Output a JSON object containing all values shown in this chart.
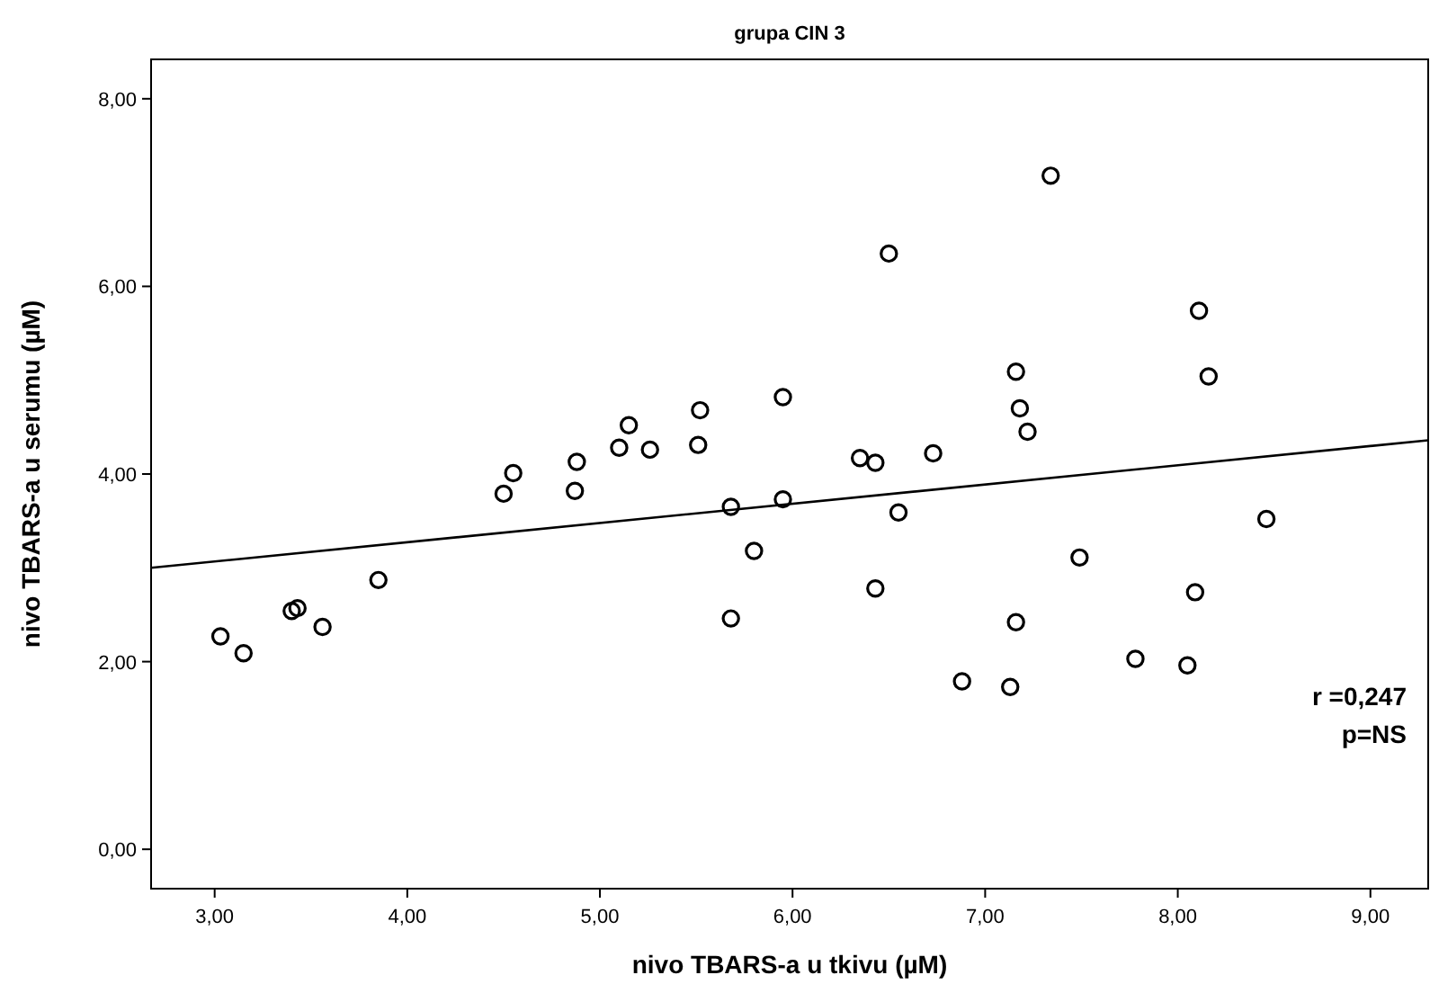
{
  "chart_data": {
    "type": "scatter",
    "title": "grupa CIN 3",
    "xlabel": "nivo TBARS-a u tkivu (µM)",
    "ylabel": "nivo TBARS-a u serumu (µM)",
    "xlim": [
      2.67,
      9.3
    ],
    "ylim": [
      -0.42,
      8.42
    ],
    "xticks": [
      {
        "value": 3,
        "label": "3,00"
      },
      {
        "value": 4,
        "label": "4,00"
      },
      {
        "value": 5,
        "label": "5,00"
      },
      {
        "value": 6,
        "label": "6,00"
      },
      {
        "value": 7,
        "label": "7,00"
      },
      {
        "value": 8,
        "label": "8,00"
      },
      {
        "value": 9,
        "label": "9,00"
      }
    ],
    "yticks": [
      {
        "value": 0,
        "label": "0,00"
      },
      {
        "value": 2,
        "label": "2,00"
      },
      {
        "value": 4,
        "label": "4,00"
      },
      {
        "value": 6,
        "label": "6,00"
      },
      {
        "value": 8,
        "label": "8,00"
      }
    ],
    "grid": false,
    "marker": "circle",
    "series": [
      {
        "color": "#000000",
        "x": [
          3.03,
          3.15,
          3.4,
          3.43,
          3.56,
          3.85,
          4.5,
          4.55,
          4.87,
          4.88,
          5.1,
          5.15,
          5.26,
          5.51,
          5.52,
          5.68,
          5.8,
          5.68,
          6.5,
          7.34,
          8.11,
          8.16,
          7.16,
          7.18,
          7.22,
          5.95,
          6.35,
          6.43,
          6.73,
          5.95,
          6.55,
          8.46,
          7.49,
          6.43,
          8.09,
          7.16,
          7.78,
          8.05,
          6.88,
          7.13
        ],
        "values": [
          2.27,
          2.09,
          2.54,
          2.57,
          2.37,
          2.87,
          3.79,
          4.01,
          3.82,
          4.13,
          4.28,
          4.52,
          4.26,
          4.31,
          4.68,
          3.65,
          3.18,
          2.46,
          6.35,
          7.18,
          5.74,
          5.04,
          5.09,
          4.7,
          4.45,
          4.82,
          4.17,
          4.12,
          4.22,
          3.73,
          3.59,
          3.52,
          3.11,
          2.78,
          2.74,
          2.42,
          2.03,
          1.96,
          1.79,
          1.73
        ]
      },
      {
        "type": "line",
        "color": "#000000",
        "marker": "none",
        "line_style": "solid",
        "x": [
          2.67,
          9.3
        ],
        "values": [
          3.0,
          4.36
        ]
      }
    ],
    "annotations": [
      {
        "text": "r =0,247"
      },
      {
        "text": "p=NS"
      }
    ]
  }
}
